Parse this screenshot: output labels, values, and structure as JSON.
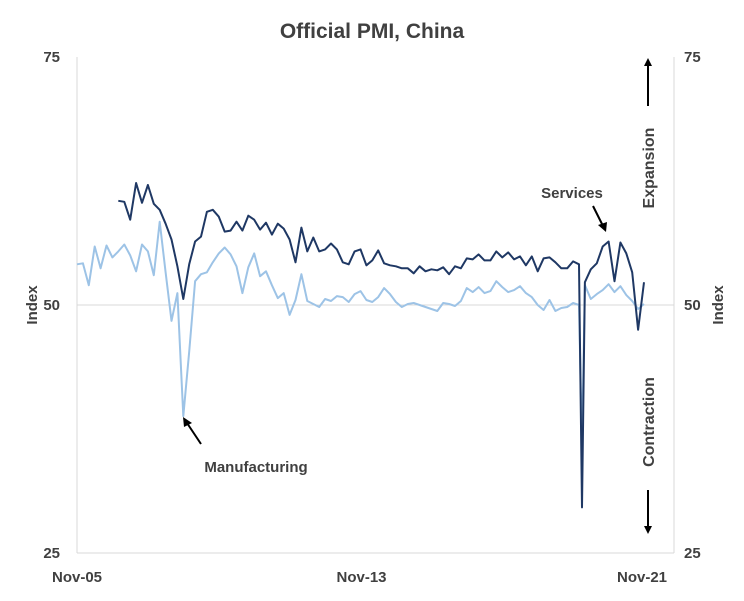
{
  "chart_data": {
    "type": "line",
    "title": "Official PMI, China",
    "ylabel_left": "Index",
    "ylabel_right": "Index",
    "ylim": [
      25,
      75
    ],
    "yticks": [
      25,
      50,
      75
    ],
    "xticks": [
      "Nov-05",
      "Nov-13",
      "Nov-21"
    ],
    "x_range": [
      "2005-11",
      "2021-11"
    ],
    "annotations": {
      "manufacturing": "Manufacturing",
      "services": "Services",
      "expansion": "Expansion",
      "contraction": "Contraction"
    },
    "colors": {
      "manufacturing": "#9dc3e6",
      "services": "#1f3864"
    },
    "series": [
      {
        "name": "Manufacturing",
        "x": [
          "2005-11",
          "2006-01",
          "2006-03",
          "2006-05",
          "2006-07",
          "2006-09",
          "2006-11",
          "2007-01",
          "2007-03",
          "2007-05",
          "2007-07",
          "2007-09",
          "2007-11",
          "2008-01",
          "2008-03",
          "2008-05",
          "2008-07",
          "2008-09",
          "2008-11",
          "2009-01",
          "2009-03",
          "2009-05",
          "2009-07",
          "2009-09",
          "2009-11",
          "2010-01",
          "2010-03",
          "2010-05",
          "2010-07",
          "2010-09",
          "2010-11",
          "2011-01",
          "2011-03",
          "2011-05",
          "2011-07",
          "2011-09",
          "2011-11",
          "2012-01",
          "2012-03",
          "2012-05",
          "2012-07",
          "2012-09",
          "2012-11",
          "2013-01",
          "2013-03",
          "2013-05",
          "2013-07",
          "2013-09",
          "2013-11",
          "2014-01",
          "2014-03",
          "2014-05",
          "2014-07",
          "2014-09",
          "2014-11",
          "2015-01",
          "2015-03",
          "2015-05",
          "2015-07",
          "2015-09",
          "2015-11",
          "2016-01",
          "2016-03",
          "2016-05",
          "2016-07",
          "2016-09",
          "2016-11",
          "2017-01",
          "2017-03",
          "2017-05",
          "2017-07",
          "2017-09",
          "2017-11",
          "2018-01",
          "2018-03",
          "2018-05",
          "2018-07",
          "2018-09",
          "2018-11",
          "2019-01",
          "2019-03",
          "2019-05",
          "2019-07",
          "2019-09",
          "2019-11",
          "2020-01",
          "2020-02",
          "2020-03",
          "2020-05",
          "2020-07",
          "2020-09",
          "2020-11",
          "2021-01",
          "2021-03",
          "2021-05",
          "2021-07",
          "2021-09",
          "2021-11"
        ],
        "values": [
          54.1,
          54.2,
          52.0,
          55.9,
          53.7,
          56.0,
          54.8,
          55.4,
          56.1,
          55.0,
          53.4,
          56.1,
          55.4,
          53.0,
          58.4,
          53.3,
          48.4,
          51.2,
          38.8,
          45.3,
          52.4,
          53.1,
          53.3,
          54.3,
          55.2,
          55.8,
          55.1,
          53.9,
          51.2,
          53.8,
          55.2,
          52.9,
          53.4,
          52.0,
          50.7,
          51.2,
          49.0,
          50.5,
          53.1,
          50.4,
          50.1,
          49.8,
          50.6,
          50.4,
          50.9,
          50.8,
          50.3,
          51.1,
          51.4,
          50.5,
          50.3,
          50.8,
          51.7,
          51.1,
          50.3,
          49.8,
          50.1,
          50.2,
          50.0,
          49.8,
          49.6,
          49.4,
          50.2,
          50.1,
          49.9,
          50.4,
          51.7,
          51.3,
          51.8,
          51.2,
          51.4,
          52.4,
          51.8,
          51.3,
          51.5,
          51.9,
          51.2,
          50.8,
          50.0,
          49.5,
          50.5,
          49.4,
          49.7,
          49.8,
          50.2,
          50.0,
          35.7,
          52.0,
          50.6,
          51.1,
          51.5,
          52.1,
          51.3,
          51.9,
          51.0,
          50.4,
          49.6,
          50.1
        ]
      },
      {
        "name": "Services",
        "x": [
          "2007-01",
          "2007-03",
          "2007-05",
          "2007-07",
          "2007-09",
          "2007-11",
          "2008-01",
          "2008-03",
          "2008-05",
          "2008-07",
          "2008-09",
          "2008-11",
          "2009-01",
          "2009-03",
          "2009-05",
          "2009-07",
          "2009-09",
          "2009-11",
          "2010-01",
          "2010-03",
          "2010-05",
          "2010-07",
          "2010-09",
          "2010-11",
          "2011-01",
          "2011-03",
          "2011-05",
          "2011-07",
          "2011-09",
          "2011-11",
          "2012-01",
          "2012-03",
          "2012-05",
          "2012-07",
          "2012-09",
          "2012-11",
          "2013-01",
          "2013-03",
          "2013-05",
          "2013-07",
          "2013-09",
          "2013-11",
          "2014-01",
          "2014-03",
          "2014-05",
          "2014-07",
          "2014-09",
          "2014-11",
          "2015-01",
          "2015-03",
          "2015-05",
          "2015-07",
          "2015-09",
          "2015-11",
          "2016-01",
          "2016-03",
          "2016-05",
          "2016-07",
          "2016-09",
          "2016-11",
          "2017-01",
          "2017-03",
          "2017-05",
          "2017-07",
          "2017-09",
          "2017-11",
          "2018-01",
          "2018-03",
          "2018-05",
          "2018-07",
          "2018-09",
          "2018-11",
          "2019-01",
          "2019-03",
          "2019-05",
          "2019-07",
          "2019-09",
          "2019-11",
          "2020-01",
          "2020-02",
          "2020-03",
          "2020-05",
          "2020-07",
          "2020-09",
          "2020-11",
          "2021-01",
          "2021-03",
          "2021-05",
          "2021-07",
          "2021-09",
          "2021-11"
        ],
        "values": [
          60.5,
          60.4,
          58.6,
          62.3,
          60.3,
          62.1,
          60.2,
          59.6,
          58.2,
          56.6,
          53.9,
          50.6,
          54.1,
          56.4,
          56.9,
          59.4,
          59.6,
          58.9,
          57.4,
          57.5,
          58.4,
          57.5,
          59.0,
          58.6,
          57.6,
          58.3,
          57.1,
          58.2,
          57.7,
          56.6,
          54.3,
          57.8,
          55.4,
          56.8,
          55.4,
          55.6,
          56.2,
          55.6,
          54.3,
          54.1,
          55.4,
          55.6,
          54.0,
          54.5,
          55.5,
          54.2,
          54.0,
          53.9,
          53.7,
          53.7,
          53.2,
          53.9,
          53.4,
          53.6,
          53.5,
          53.8,
          53.1,
          53.9,
          53.7,
          54.7,
          54.6,
          55.1,
          54.5,
          54.5,
          55.4,
          54.8,
          55.3,
          54.6,
          54.9,
          54.0,
          54.9,
          53.4,
          54.7,
          54.8,
          54.3,
          53.7,
          53.7,
          54.4,
          54.1,
          29.6,
          52.3,
          53.6,
          54.2,
          55.9,
          56.4,
          52.4,
          56.3,
          55.2,
          53.3,
          47.5,
          52.3
        ]
      }
    ]
  }
}
